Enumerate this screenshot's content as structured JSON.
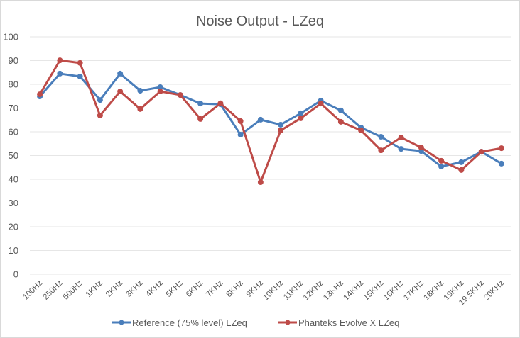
{
  "chart_data": {
    "type": "line",
    "title": "Noise Output  - LZeq",
    "xlabel": "",
    "ylabel": "",
    "ylim": [
      0,
      100
    ],
    "yticks": [
      0,
      10,
      20,
      30,
      40,
      50,
      60,
      70,
      80,
      90,
      100
    ],
    "grid": true,
    "legend_position": "bottom",
    "categories": [
      "100Hz",
      "250Hz",
      "500Hz",
      "1KHz",
      "2KHz",
      "3KHz",
      "4KHz",
      "5KHz",
      "6KHz",
      "7KHz",
      "8KHz",
      "9KHz",
      "10KHz",
      "11KHz",
      "12KHz",
      "13KHz",
      "14KHz",
      "15KHz",
      "16KHz",
      "17KHz",
      "18KHz",
      "19KHz",
      "19.5KHz",
      "20KHz"
    ],
    "series": [
      {
        "name": "Reference (75% level) LZeq",
        "color": "#4a7ebb",
        "values": [
          74.9,
          84.5,
          83.3,
          73.4,
          84.5,
          77.3,
          78.8,
          75.5,
          71.9,
          71.6,
          58.8,
          65.1,
          63.0,
          67.8,
          73.1,
          69.0,
          61.8,
          57.9,
          52.8,
          51.9,
          45.4,
          47.2,
          51.6,
          46.6
        ]
      },
      {
        "name": "Phanteks Evolve X LZeq",
        "color": "#be4b48",
        "values": [
          75.8,
          90.1,
          89.0,
          66.9,
          77.0,
          69.6,
          77.0,
          75.5,
          65.4,
          72.0,
          64.5,
          38.8,
          60.6,
          65.7,
          71.9,
          64.2,
          60.6,
          52.2,
          57.6,
          53.4,
          47.8,
          43.9,
          51.6,
          53.1
        ]
      }
    ]
  }
}
